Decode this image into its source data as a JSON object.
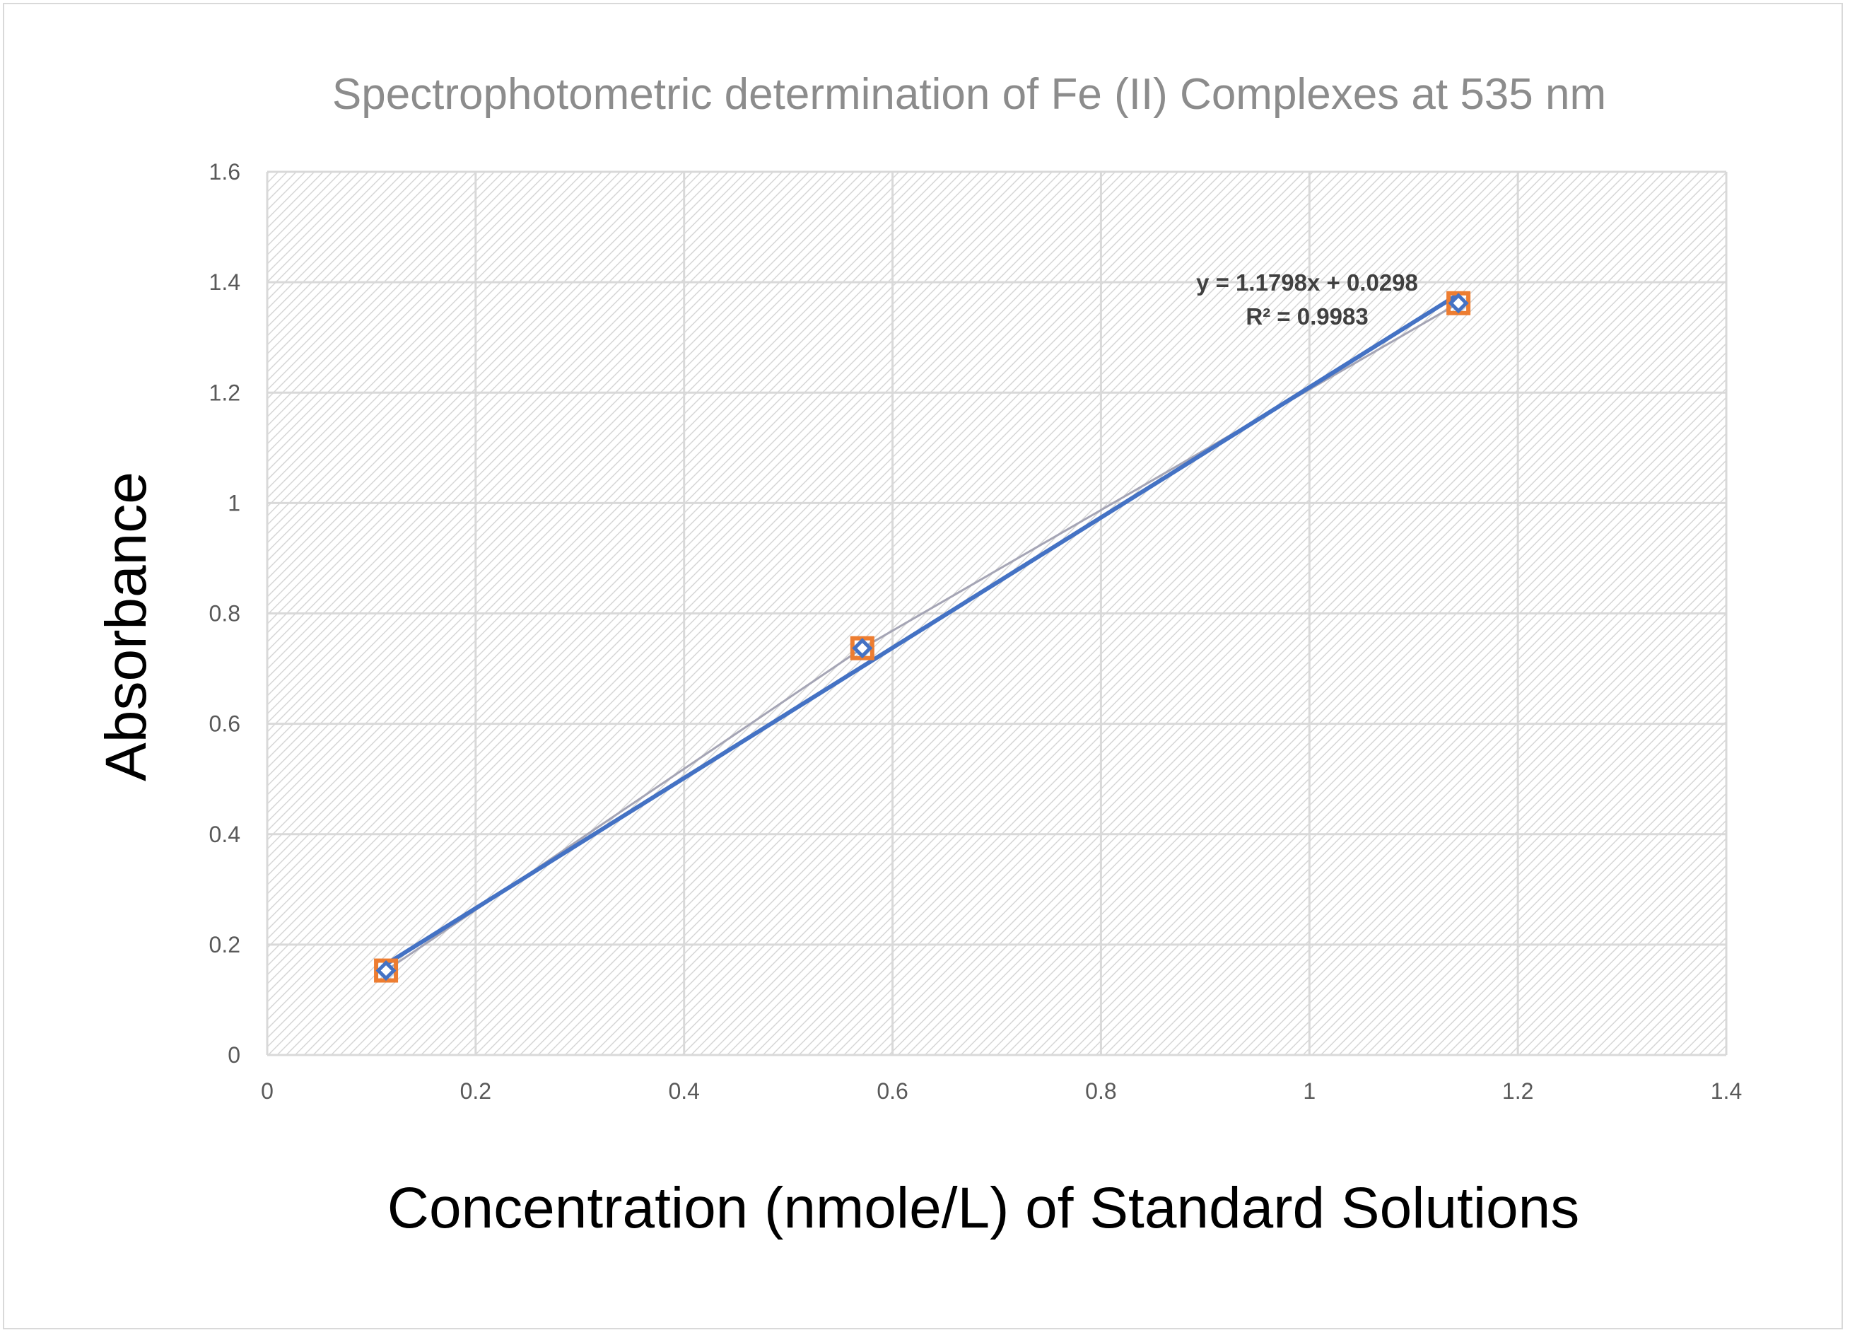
{
  "chart_data": {
    "type": "scatter",
    "title": "Spectrophotometric determination of Fe (II) Complexes at 535 nm",
    "xlabel": "Concentration (nmole/L) of Standard Solutions",
    "ylabel": "Absorbance",
    "xlim": [
      0,
      1.4
    ],
    "ylim": [
      0,
      1.6
    ],
    "xticks": [
      "0",
      "0.2",
      "0.4",
      "0.6",
      "0.8",
      "1",
      "1.2",
      "1.4"
    ],
    "yticks": [
      "0",
      "0.2",
      "0.4",
      "0.6",
      "0.8",
      "1",
      "1.2",
      "1.4",
      "1.6"
    ],
    "grid": true,
    "plot_background": "diagonal hatch",
    "series": [
      {
        "marker": "square",
        "color": "#ed7d31",
        "x": [
          0.114,
          0.571,
          1.143
        ],
        "y": [
          0.153,
          0.737,
          1.362
        ]
      },
      {
        "marker": "diamond",
        "color": "#4472c4",
        "x": [
          0.114,
          0.571,
          1.143
        ],
        "y": [
          0.153,
          0.737,
          1.362
        ]
      }
    ],
    "connector_line": {
      "color": "#a5a5b5",
      "x": [
        0.114,
        0.571,
        1.143
      ],
      "y": [
        0.153,
        0.737,
        1.362
      ]
    },
    "trendline": {
      "type": "linear",
      "slope": 1.1798,
      "intercept": 0.0298,
      "x_range": [
        0.114,
        1.143
      ],
      "color": "#4472c4",
      "equation": "y = 1.1798x + 0.0298",
      "r_squared": "R² = 0.9983"
    }
  }
}
